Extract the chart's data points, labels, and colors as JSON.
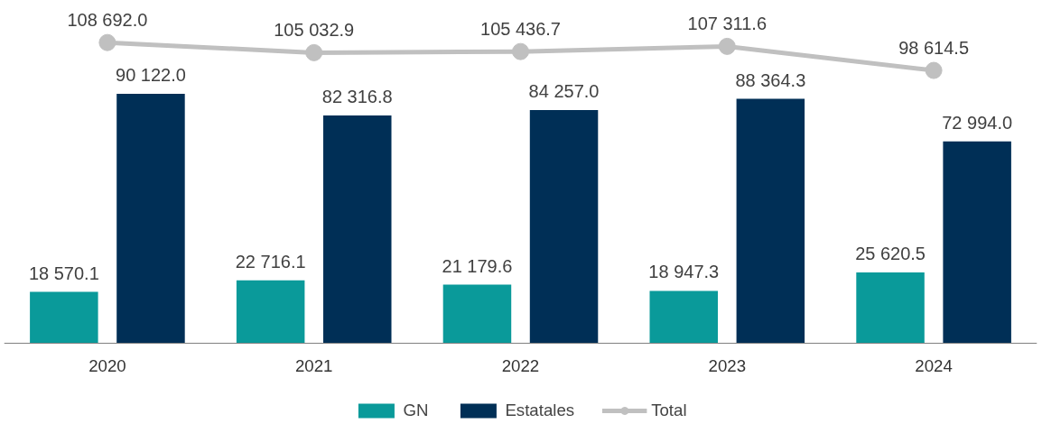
{
  "chart_data": {
    "type": "bar",
    "categories": [
      "2020",
      "2021",
      "2022",
      "2023",
      "2024"
    ],
    "tick_labels": "x",
    "grid": false,
    "legend": "bottom",
    "marker": "circle",
    "series": [
      {
        "name": "GN",
        "color": "#0a9a9a",
        "values": [
          18570.1,
          22716.1,
          21179.6,
          18947.3,
          25620.5
        ],
        "value_labels": [
          "18 570.1",
          "22 716.1",
          "21 179.6",
          "18 947.3",
          "25 620.5"
        ]
      },
      {
        "name": "Estatales",
        "color": "#002f56",
        "values": [
          90122.0,
          82316.8,
          84257.0,
          88364.3,
          72994.0
        ],
        "value_labels": [
          "90 122.0",
          "82 316.8",
          "84 257.0",
          "88 364.3",
          "72 994.0"
        ]
      },
      {
        "name": "Total",
        "type": "line",
        "color": "#c0c0c0",
        "values": [
          108692.0,
          105032.9,
          105436.7,
          107311.6,
          98614.5
        ],
        "value_labels": [
          "108 692.0",
          "105 032.9",
          "105 436.7",
          "107 311.6",
          "98 614.5"
        ]
      }
    ]
  }
}
